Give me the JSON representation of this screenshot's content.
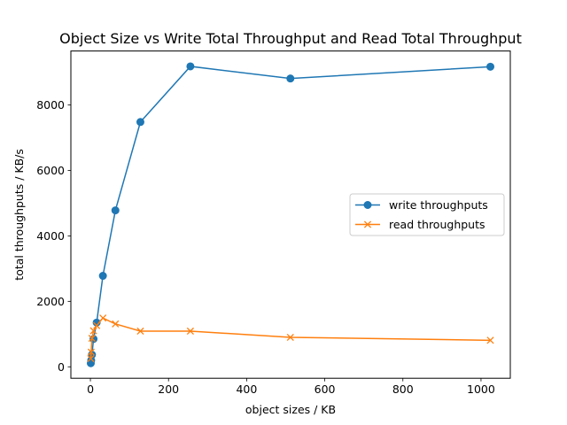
{
  "chart_data": {
    "type": "line",
    "title": "Object Size vs Write Total Throughput and Read Total Throughput",
    "xlabel": "object sizes / KB",
    "ylabel": "total throughputs / KB/s",
    "xlim": [
      -50,
      1075
    ],
    "ylim": [
      -350,
      9650
    ],
    "xticks": [
      0,
      200,
      400,
      600,
      800,
      1000
    ],
    "yticks": [
      0,
      2000,
      4000,
      6000,
      8000
    ],
    "grid": false,
    "legend_position": "center-right",
    "series": [
      {
        "name": "write throughputs",
        "color": "#1f77b4",
        "marker": "circle",
        "x": [
          1,
          2,
          4,
          8,
          16,
          32,
          64,
          128,
          256,
          512,
          1024
        ],
        "y": [
          110,
          200,
          370,
          850,
          1350,
          2780,
          4780,
          7480,
          9180,
          8810,
          9170
        ]
      },
      {
        "name": "read throughputs",
        "color": "#ff7f0e",
        "marker": "x",
        "x": [
          1,
          2,
          4,
          8,
          16,
          32,
          64,
          128,
          256,
          512,
          1024
        ],
        "y": [
          250,
          450,
          870,
          1100,
          1260,
          1490,
          1310,
          1090,
          1090,
          900,
          810
        ]
      }
    ]
  }
}
